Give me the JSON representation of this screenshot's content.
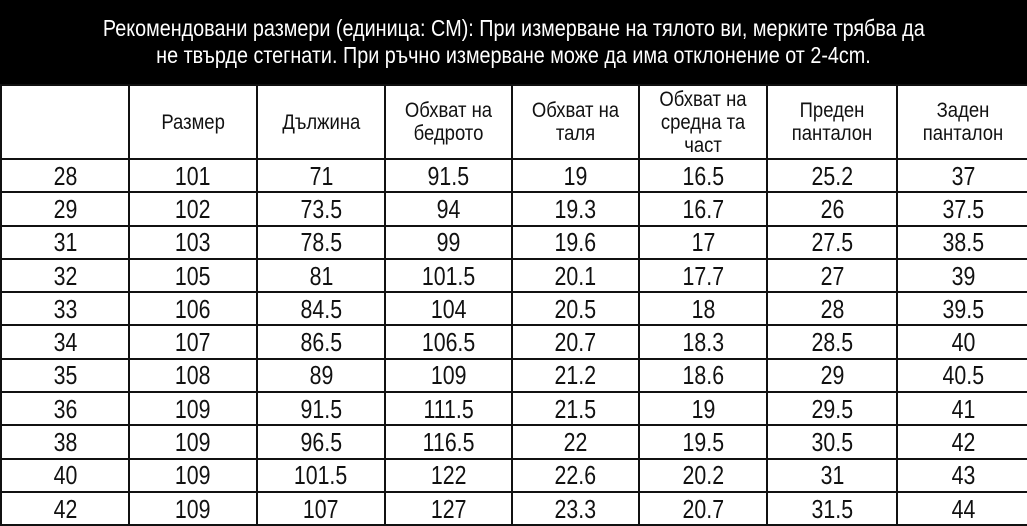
{
  "banner": {
    "line1": "Рекомендовани размери (единица: CM):  При измерване на тялото ви, мерките трябва да",
    "line2": "не твърде стегнати. При ръчно измерване може да има отклонение от 2-4cm."
  },
  "table": {
    "headers": [
      "",
      "Размер",
      "Дължина",
      "Обхват на бедрото",
      "Обхват на таля",
      "Обхват на средна та част",
      "Преден панталон",
      "Заден панталон"
    ],
    "rows": [
      [
        "28",
        "101",
        "71",
        "91.5",
        "19",
        "16.5",
        "25.2",
        "37"
      ],
      [
        "29",
        "102",
        "73.5",
        "94",
        "19.3",
        "16.7",
        "26",
        "37.5"
      ],
      [
        "31",
        "103",
        "78.5",
        "99",
        "19.6",
        "17",
        "27.5",
        "38.5"
      ],
      [
        "32",
        "105",
        "81",
        "101.5",
        "20.1",
        "17.7",
        "27",
        "39"
      ],
      [
        "33",
        "106",
        "84.5",
        "104",
        "20.5",
        "18",
        "28",
        "39.5"
      ],
      [
        "34",
        "107",
        "86.5",
        "106.5",
        "20.7",
        "18.3",
        "28.5",
        "40"
      ],
      [
        "35",
        "108",
        "89",
        "109",
        "21.2",
        "18.6",
        "29",
        "40.5"
      ],
      [
        "36",
        "109",
        "91.5",
        "111.5",
        "21.5",
        "19",
        "29.5",
        "41"
      ],
      [
        "38",
        "109",
        "96.5",
        "116.5",
        "22",
        "19.5",
        "30.5",
        "42"
      ],
      [
        "40",
        "109",
        "101.5",
        "122",
        "22.6",
        "20.2",
        "31",
        "43"
      ],
      [
        "42",
        "109",
        "107",
        "127",
        "23.3",
        "20.7",
        "31.5",
        "44"
      ]
    ]
  }
}
